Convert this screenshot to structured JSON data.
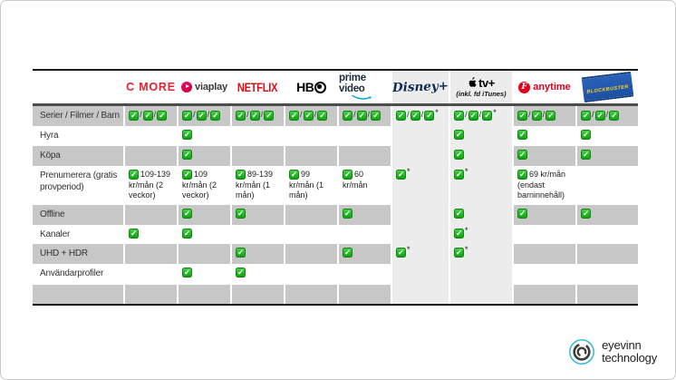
{
  "colors": {
    "check_green": "#1fb41f",
    "row_gray": "#c7c7c7",
    "highlight_column_gray": "#ececec",
    "cmore_red": "#e8212d",
    "viaplay_pink": "#e4005d",
    "netflix_red": "#e50914",
    "hbo_black": "#000000",
    "prime_navy": "#1d2b3a",
    "prime_smile_blue": "#00a8e1",
    "disney_navy": "#0d2a50",
    "sf_red": "#e2001a",
    "blockbuster_blue": "#1c4fa1",
    "blockbuster_yellow": "#ffd41f",
    "eyevinn_blue": "#35b7dc"
  },
  "table": {
    "columns": [
      {
        "id": "feature",
        "label": ""
      },
      {
        "id": "cmore",
        "label": "C MORE"
      },
      {
        "id": "viaplay",
        "label": "viaplay"
      },
      {
        "id": "netflix",
        "label": "NETFLIX"
      },
      {
        "id": "hbo",
        "label": "HBO",
        "logo_text": "HB"
      },
      {
        "id": "primevideo",
        "label": "prime video"
      },
      {
        "id": "disneyplus",
        "label": "Disney+",
        "highlight": true
      },
      {
        "id": "appletvplus",
        "label": "tv+",
        "sub": "(inkl. fd iTunes)",
        "highlight": true
      },
      {
        "id": "sfanytime",
        "label": "anytime",
        "icon_letter": "F"
      },
      {
        "id": "blockbuster",
        "label": "BLOCKBUSTER"
      }
    ],
    "rows": [
      {
        "label": "Serier / Filmer / Barn",
        "cells": [
          [
            "c",
            "/",
            "c",
            "/",
            "c"
          ],
          [
            "c",
            "/",
            "c",
            "/",
            "c"
          ],
          [
            "c",
            "/",
            "c",
            "/",
            "c"
          ],
          [
            "c",
            "/",
            "c",
            "/",
            "c"
          ],
          [
            "c",
            "/",
            "c",
            "/",
            "c"
          ],
          [
            "c",
            "/",
            "c",
            "/",
            "c*"
          ],
          [
            "c",
            "/",
            "c",
            "/",
            "c*"
          ],
          [
            "c",
            "/",
            "c",
            "/",
            "c"
          ],
          [
            "c",
            "/",
            "c",
            "/",
            "c"
          ]
        ]
      },
      {
        "label": "Hyra",
        "cells": [
          [],
          [
            "c"
          ],
          [],
          [],
          [],
          [],
          [
            "c"
          ],
          [
            "c"
          ],
          [
            "c"
          ]
        ]
      },
      {
        "label": "Köpa",
        "cells": [
          [],
          [
            "c"
          ],
          [],
          [],
          [],
          [],
          [
            "c"
          ],
          [
            "c"
          ],
          [
            "c"
          ]
        ]
      },
      {
        "label": "Prenumerera (gratis provperiod)",
        "cells": [
          [
            "c",
            "109-139 kr/mån (2 veckor)"
          ],
          [
            "c",
            "109 kr/mån (2 veckor)"
          ],
          [
            "c",
            "89-139 kr/mån (1 mån)"
          ],
          [
            "c",
            "99 kr/mån (1 mån)"
          ],
          [
            "c",
            "60 kr/mån"
          ],
          [
            "c*"
          ],
          [
            "c*"
          ],
          [
            "c",
            "69 kr/mån (endast barninnehåll)"
          ],
          []
        ]
      },
      {
        "label": "Offline",
        "cells": [
          [],
          [
            "c"
          ],
          [
            "c"
          ],
          [],
          [
            "c"
          ],
          [],
          [
            "c"
          ],
          [
            "c"
          ],
          [
            "c"
          ]
        ]
      },
      {
        "label": "Kanaler",
        "cells": [
          [
            "c"
          ],
          [
            "c"
          ],
          [],
          [],
          [],
          [],
          [
            "c*"
          ],
          [],
          []
        ]
      },
      {
        "label": "UHD + HDR",
        "cells": [
          [],
          [],
          [
            "c"
          ],
          [],
          [
            "c"
          ],
          [
            "c*"
          ],
          [
            "c*"
          ],
          [],
          []
        ]
      },
      {
        "label": "Användarprofiler",
        "cells": [
          [],
          [
            "c"
          ],
          [
            "c"
          ],
          [],
          [],
          [],
          [],
          [],
          []
        ]
      },
      {
        "label": "",
        "cells": [
          [],
          [],
          [],
          [],
          [],
          [],
          [],
          [],
          []
        ]
      }
    ]
  },
  "chart_data": {
    "type": "table",
    "title": "",
    "columns": [
      "C MORE",
      "viaplay",
      "NETFLIX",
      "HBO",
      "prime video",
      "Disney+",
      "Apple tv+ (inkl. fd iTunes)",
      "SF anytime",
      "BLOCKBUSTER"
    ],
    "row_labels": [
      "Serier / Filmer / Barn",
      "Hyra",
      "Köpa",
      "Prenumerera (gratis provperiod)",
      "Offline",
      "Kanaler",
      "UHD + HDR",
      "Användarprofiler"
    ],
    "cells": [
      [
        "✓/✓/✓",
        "✓/✓/✓",
        "✓/✓/✓",
        "✓/✓/✓",
        "✓/✓/✓",
        "✓/✓/✓*",
        "✓/✓/✓*",
        "✓/✓/✓",
        "✓/✓/✓"
      ],
      [
        "",
        "✓",
        "",
        "",
        "",
        "",
        "✓",
        "✓",
        "✓"
      ],
      [
        "",
        "✓",
        "",
        "",
        "",
        "",
        "✓",
        "✓",
        "✓"
      ],
      [
        "✓ 109-139 kr/mån (2 veckor)",
        "✓ 109 kr/mån (2 veckor)",
        "✓ 89-139 kr/mån (1 mån)",
        "✓ 99 kr/mån (1 mån)",
        "✓ 60 kr/mån",
        "✓*",
        "✓*",
        "✓ 69 kr/mån (endast barninnehåll)",
        ""
      ],
      [
        "",
        "✓",
        "✓",
        "",
        "✓",
        "",
        "✓",
        "✓",
        "✓"
      ],
      [
        "✓",
        "✓",
        "",
        "",
        "",
        "",
        "✓*",
        "",
        ""
      ],
      [
        "",
        "",
        "✓",
        "",
        "✓",
        "✓*",
        "✓*",
        "",
        ""
      ],
      [
        "",
        "✓",
        "✓",
        "",
        "",
        "",
        "",
        "",
        ""
      ]
    ],
    "highlighted_columns": [
      "Disney+",
      "Apple tv+ (inkl. fd iTunes)"
    ]
  },
  "footer": {
    "logo_line1": "eyevinn",
    "logo_line2": "technology"
  }
}
